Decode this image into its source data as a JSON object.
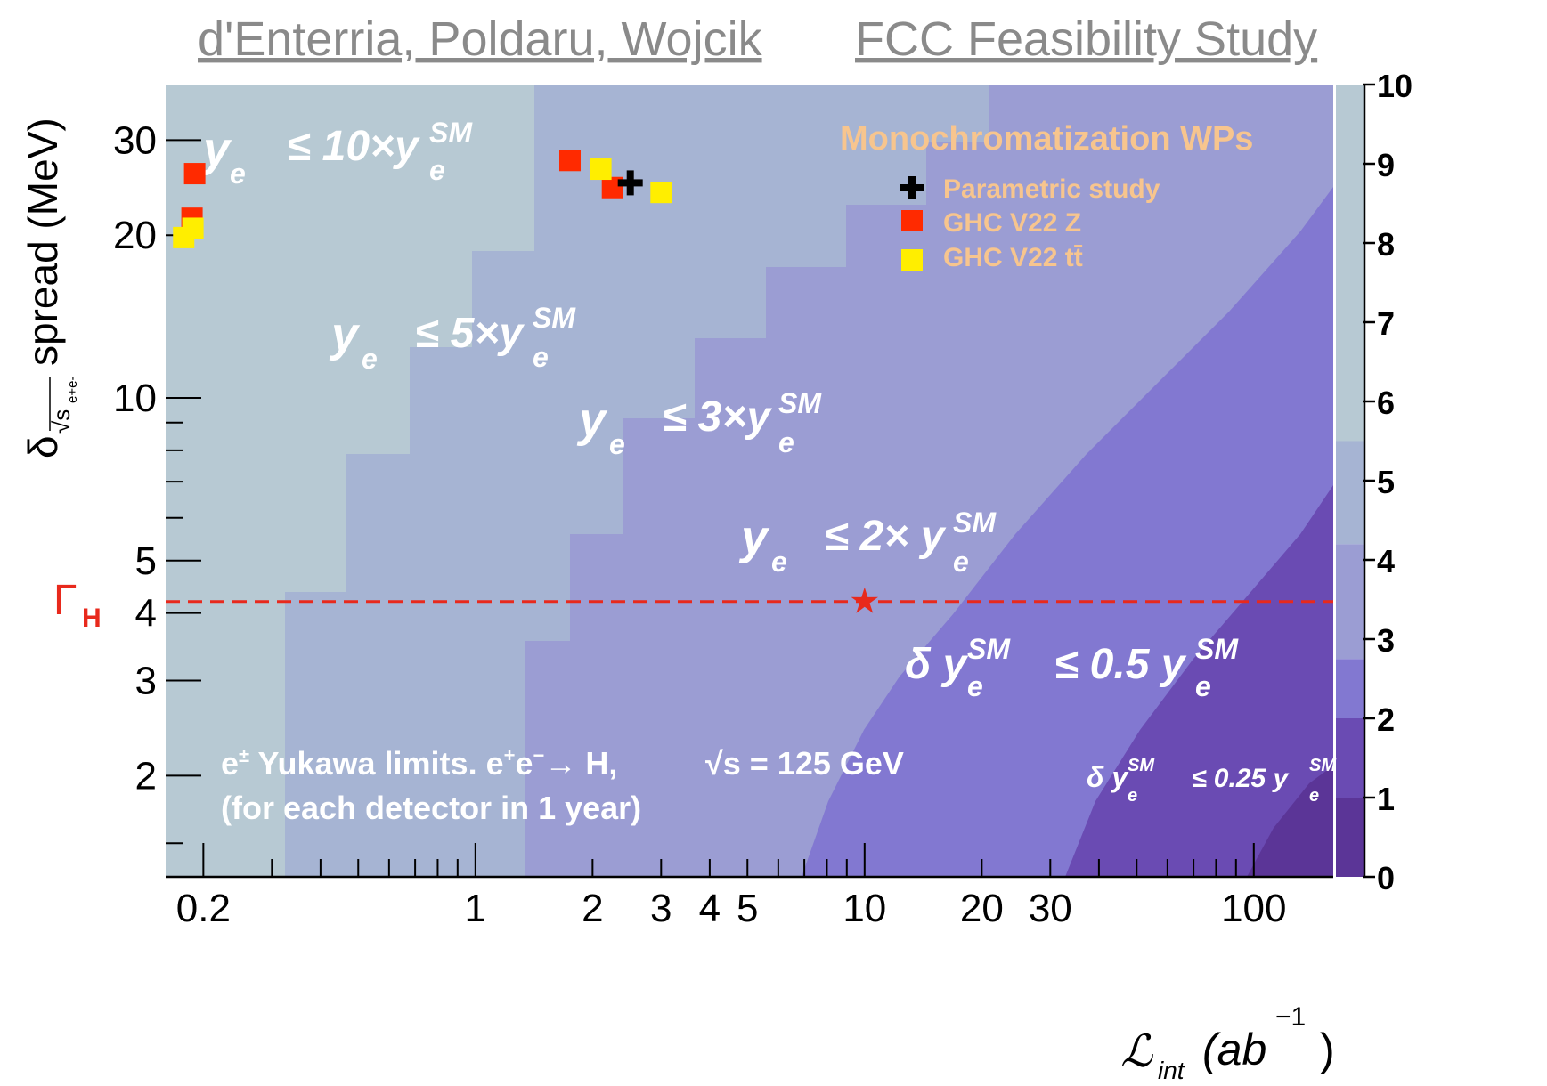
{
  "header": {
    "authors": "d'Enterria, Poldaru, Wojcik",
    "study": "FCC Feasibility Study"
  },
  "chart_data": {
    "type": "heatmap",
    "x_axis": {
      "label": "ℒ",
      "label_sub": "int",
      "label_unit": "(ab",
      "label_exp": "−1",
      "label_close": ")",
      "scale": "log",
      "range": [
        0.16,
        160
      ],
      "ticks": [
        {
          "v": 0.2,
          "label": "0.2"
        },
        {
          "v": 1,
          "label": "1"
        },
        {
          "v": 2,
          "label": "2"
        },
        {
          "v": 3,
          "label": "3"
        },
        {
          "v": 4,
          "label": "4"
        },
        {
          "v": 5,
          "label": "5"
        },
        {
          "v": 10,
          "label": "10"
        },
        {
          "v": 20,
          "label": "20"
        },
        {
          "v": 30,
          "label": "30"
        },
        {
          "v": 100,
          "label": "100"
        }
      ]
    },
    "y_axis": {
      "label_prefix": "δ",
      "label_sub": "√s",
      "label_subsub": "e+e-",
      "label_main": "spread (MeV)",
      "scale": "log",
      "range": [
        1.3,
        38
      ],
      "ticks": [
        {
          "v": 2,
          "label": "2"
        },
        {
          "v": 3,
          "label": "3"
        },
        {
          "v": 4,
          "label": "4"
        },
        {
          "v": 5,
          "label": "5"
        },
        {
          "v": 10,
          "label": "10"
        },
        {
          "v": 20,
          "label": "20"
        },
        {
          "v": 30,
          "label": "30"
        }
      ]
    },
    "color_scale": {
      "ticks": [
        "0",
        "1",
        "2",
        "3",
        "4",
        "5",
        "6",
        "7",
        "8",
        "9",
        "10"
      ],
      "band_colors": [
        "#5b3597",
        "#6a4bb3",
        "#8278d1",
        "#9b9dd3",
        "#a6b4d3",
        "#b7c9d3"
      ]
    },
    "region_labels": [
      {
        "pre": "y",
        "sub": "e",
        "rel": "≤ 10×y",
        "sup": "SM",
        "sub2": "e"
      },
      {
        "pre": "y",
        "sub": "e",
        "rel": "≤ 5×y",
        "sup": "SM",
        "sub2": "e"
      },
      {
        "pre": "y",
        "sub": "e",
        "rel": "≤ 3×y",
        "sup": "SM",
        "sub2": "e"
      },
      {
        "pre": "y",
        "sub": "e",
        "rel": "≤ 2× y",
        "sup": "SM",
        "sub2": "e"
      },
      {
        "pre": "δ y",
        "sub": "e",
        "sup0": "SM",
        "rel": "≤ 0.5 y",
        "sup": "SM",
        "sub2": "e"
      },
      {
        "pre": "δ y",
        "sub": "e",
        "sup0": "SM",
        "rel": "≤ 0.25 y",
        "sup": "SM",
        "sub2": "e"
      }
    ],
    "gamma_line": {
      "label": "Γ",
      "label_sub": "H",
      "y": 4.2,
      "color": "#e8291c"
    },
    "star_point": {
      "x": 10,
      "y": 4.2,
      "color": "#e8291c"
    },
    "legend": {
      "title": "Monochromatization WPs",
      "items": [
        {
          "label": "Parametric study",
          "marker": "plus",
          "color": "#000000"
        },
        {
          "label": "GHC V22 Z",
          "marker": "square",
          "color": "#ff2a00"
        },
        {
          "label": "GHC V22 tt̄",
          "marker": "square",
          "color": "#ffee00"
        }
      ]
    },
    "series": [
      {
        "name": "Parametric study",
        "marker": "plus",
        "color": "#000000",
        "points": [
          {
            "x": 2.5,
            "y": 25
          }
        ]
      },
      {
        "name": "GHC V22 Z",
        "marker": "square",
        "color": "#ff2a00",
        "points": [
          {
            "x": 0.19,
            "y": 26
          },
          {
            "x": 0.187,
            "y": 21.5
          },
          {
            "x": 1.75,
            "y": 27.5
          },
          {
            "x": 2.25,
            "y": 24.5
          }
        ]
      },
      {
        "name": "GHC V22 tt̄",
        "marker": "square",
        "color": "#ffee00",
        "points": [
          {
            "x": 0.178,
            "y": 19.8
          },
          {
            "x": 0.188,
            "y": 20.6
          },
          {
            "x": 2.1,
            "y": 26.5
          },
          {
            "x": 3,
            "y": 24
          }
        ]
      }
    ],
    "annotation": {
      "line1_a": "e",
      "line1_sup": "±",
      "line1_b": " Yukawa limits. e",
      "line1_sup2": "+",
      "line1_c": "e",
      "line1_sup3": "−",
      "line1_d": "→ H,",
      "line1_e": "√s = 125 GeV",
      "line2": "(for each detector in 1 year)"
    }
  }
}
